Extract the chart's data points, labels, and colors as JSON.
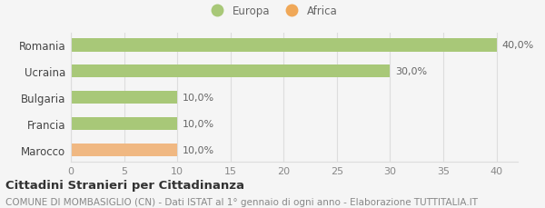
{
  "categories": [
    "Marocco",
    "Francia",
    "Bulgaria",
    "Ucraina",
    "Romania"
  ],
  "values": [
    10.0,
    10.0,
    10.0,
    30.0,
    40.0
  ],
  "colors": [
    "#f0b882",
    "#a8c878",
    "#a8c878",
    "#a8c878",
    "#a8c878"
  ],
  "labels": [
    "10,0%",
    "10,0%",
    "10,0%",
    "30,0%",
    "40,0%"
  ],
  "legend_items": [
    {
      "label": "Europa",
      "color": "#a8c878"
    },
    {
      "label": "Africa",
      "color": "#f0a858"
    }
  ],
  "xlim": [
    0,
    42
  ],
  "xticks": [
    0,
    5,
    10,
    15,
    20,
    25,
    30,
    35,
    40
  ],
  "title_bold": "Cittadini Stranieri per Cittadinanza",
  "subtitle": "COMUNE DI MOMBASIGLIO (CN) - Dati ISTAT al 1° gennaio di ogni anno - Elaborazione TUTTITALIA.IT",
  "background_color": "#f5f5f5",
  "grid_color": "#dddddd",
  "label_fontsize": 8.0,
  "ytick_fontsize": 8.5,
  "xtick_fontsize": 8.0,
  "title_fontsize": 9.5,
  "subtitle_fontsize": 7.5,
  "bar_height": 0.5
}
